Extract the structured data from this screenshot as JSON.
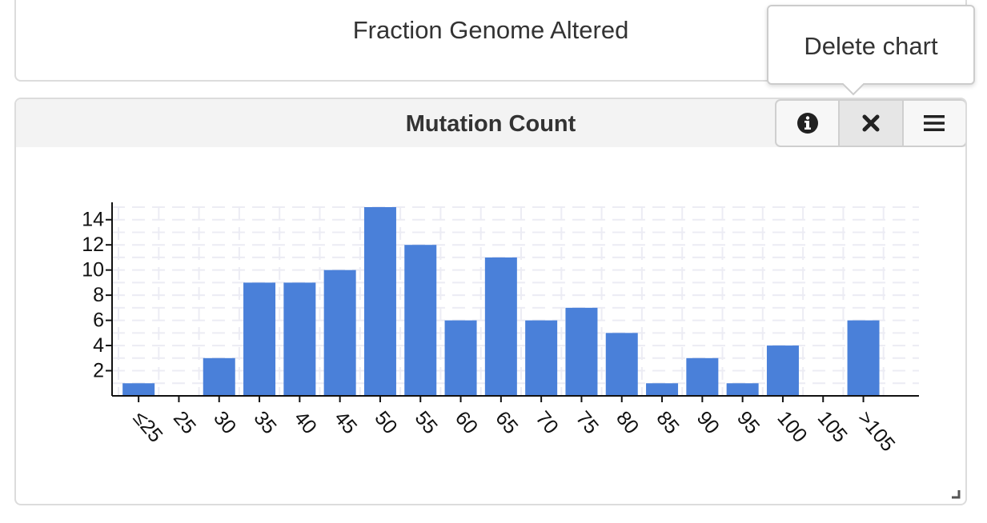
{
  "top_card": {
    "title": "Fraction Genome Altered"
  },
  "main_card": {
    "title": "Mutation Count",
    "buttons": [
      {
        "name": "info",
        "icon": "info-circle-icon"
      },
      {
        "name": "delete",
        "icon": "close-icon"
      },
      {
        "name": "menu",
        "icon": "hamburger-menu-icon"
      }
    ]
  },
  "tooltip": {
    "text": "Delete chart"
  },
  "chart_data": {
    "type": "bar",
    "categories": [
      "≤25",
      "25",
      "30",
      "35",
      "40",
      "45",
      "50",
      "55",
      "60",
      "65",
      "70",
      "75",
      "80",
      "85",
      "90",
      "95",
      "100",
      "105",
      ">105"
    ],
    "values": [
      1,
      0,
      3,
      9,
      9,
      10,
      15,
      12,
      6,
      11,
      6,
      7,
      5,
      1,
      3,
      1,
      4,
      0,
      6
    ],
    "yticks": [
      2,
      4,
      6,
      8,
      10,
      12,
      14
    ],
    "ylim": [
      0,
      15
    ],
    "grid": true,
    "bar_color": "#4a80d9"
  }
}
